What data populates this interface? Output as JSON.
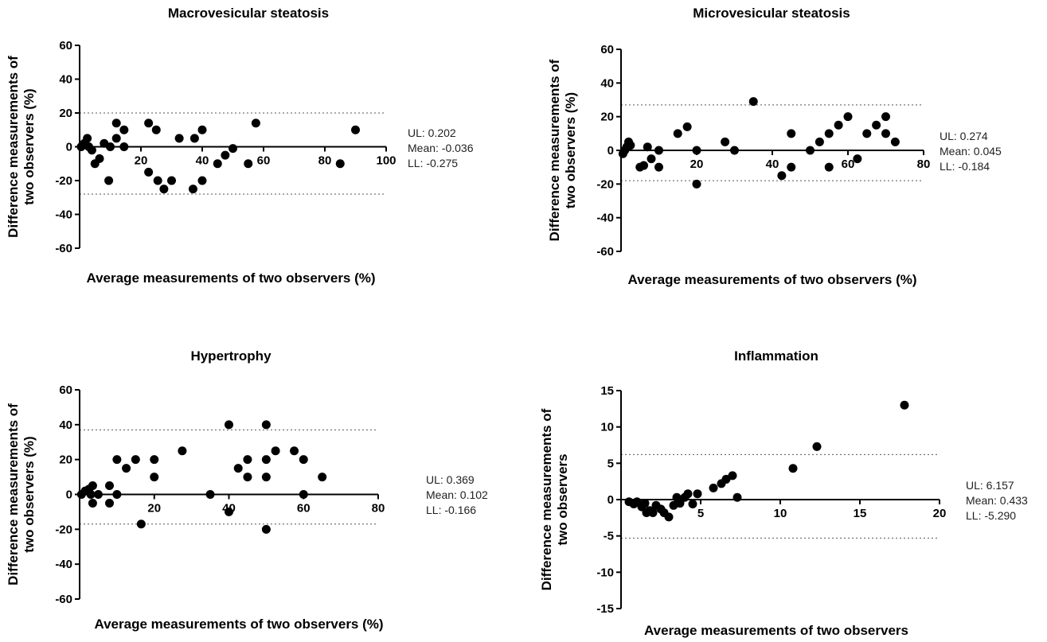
{
  "chart_data": [
    {
      "type": "scatter",
      "title": "Macrovesicular steatosis",
      "xlabel": "Average measurements of two observers (%)",
      "ylabel_lines": [
        "Difference measurements of",
        "two observers (%)"
      ],
      "xlim": [
        0,
        100
      ],
      "ylim": [
        -60,
        60
      ],
      "xticks": [
        20,
        40,
        60,
        80,
        100
      ],
      "yticks": [
        60,
        40,
        20,
        0,
        -20,
        -40,
        -60
      ],
      "upper_limit_line": 20,
      "lower_limit_line": -28,
      "stats": [
        "UL: 0.202",
        "Mean: -0.036",
        "LL: -0.275"
      ],
      "points": [
        {
          "x": 0.5,
          "y": 0
        },
        {
          "x": 1.5,
          "y": 2
        },
        {
          "x": 2.5,
          "y": 5
        },
        {
          "x": 3,
          "y": 0
        },
        {
          "x": 4,
          "y": -2
        },
        {
          "x": 5,
          "y": -10
        },
        {
          "x": 6.5,
          "y": -7
        },
        {
          "x": 8,
          "y": 2
        },
        {
          "x": 9.5,
          "y": -20
        },
        {
          "x": 10,
          "y": 0
        },
        {
          "x": 12,
          "y": 14
        },
        {
          "x": 12,
          "y": 5
        },
        {
          "x": 14.5,
          "y": 10
        },
        {
          "x": 14.5,
          "y": 0
        },
        {
          "x": 22.5,
          "y": 14
        },
        {
          "x": 22.5,
          "y": -15
        },
        {
          "x": 25,
          "y": 10
        },
        {
          "x": 25.5,
          "y": -20
        },
        {
          "x": 27.5,
          "y": -25
        },
        {
          "x": 30,
          "y": -20
        },
        {
          "x": 32.5,
          "y": 5
        },
        {
          "x": 37,
          "y": -25
        },
        {
          "x": 37.5,
          "y": 5
        },
        {
          "x": 40,
          "y": 10
        },
        {
          "x": 40,
          "y": -20
        },
        {
          "x": 45,
          "y": -10
        },
        {
          "x": 47.5,
          "y": -5
        },
        {
          "x": 50,
          "y": -1
        },
        {
          "x": 55,
          "y": -10
        },
        {
          "x": 57.5,
          "y": 14
        },
        {
          "x": 85,
          "y": -10
        },
        {
          "x": 90,
          "y": 10
        }
      ]
    },
    {
      "type": "scatter",
      "title": "Microvesicular steatosis",
      "xlabel": "Average measurements of two observers (%)",
      "ylabel_lines": [
        "Difference measurements of",
        "two observers (%)"
      ],
      "xlim": [
        0,
        80
      ],
      "ylim": [
        -60,
        60
      ],
      "xticks": [
        20,
        40,
        60,
        80
      ],
      "yticks": [
        60,
        40,
        20,
        0,
        -20,
        -40,
        -60
      ],
      "upper_limit_line": 27,
      "lower_limit_line": -18,
      "stats": [
        "UL: 0.274",
        "Mean: 0.045",
        "LL: -0.184"
      ],
      "points": [
        {
          "x": 0.5,
          "y": -2
        },
        {
          "x": 1,
          "y": 0
        },
        {
          "x": 1.5,
          "y": 2
        },
        {
          "x": 2,
          "y": 5
        },
        {
          "x": 2.5,
          "y": 3
        },
        {
          "x": 5,
          "y": -10
        },
        {
          "x": 6,
          "y": -9
        },
        {
          "x": 7,
          "y": 2
        },
        {
          "x": 8,
          "y": -5
        },
        {
          "x": 10,
          "y": 0
        },
        {
          "x": 10,
          "y": -10
        },
        {
          "x": 15,
          "y": 10
        },
        {
          "x": 17.5,
          "y": 14
        },
        {
          "x": 20,
          "y": 0
        },
        {
          "x": 20,
          "y": -20
        },
        {
          "x": 27.5,
          "y": 5
        },
        {
          "x": 30,
          "y": 0
        },
        {
          "x": 35,
          "y": 29
        },
        {
          "x": 42.5,
          "y": -15
        },
        {
          "x": 45,
          "y": 10
        },
        {
          "x": 45,
          "y": -10
        },
        {
          "x": 50,
          "y": 0
        },
        {
          "x": 52.5,
          "y": 5
        },
        {
          "x": 55,
          "y": 10
        },
        {
          "x": 55,
          "y": -10
        },
        {
          "x": 57.5,
          "y": 15
        },
        {
          "x": 60,
          "y": 20
        },
        {
          "x": 62.5,
          "y": -5
        },
        {
          "x": 65,
          "y": 10
        },
        {
          "x": 67.5,
          "y": 15
        },
        {
          "x": 70,
          "y": 20
        },
        {
          "x": 70,
          "y": 10
        },
        {
          "x": 72.5,
          "y": 5
        }
      ]
    },
    {
      "type": "scatter",
      "title": "Hypertrophy",
      "xlabel": "Average measurements of two observers (%)",
      "ylabel_lines": [
        "Difference measurements of",
        "two observers (%)"
      ],
      "xlim": [
        0,
        80
      ],
      "ylim": [
        -60,
        60
      ],
      "xticks": [
        20,
        40,
        60,
        80
      ],
      "yticks": [
        60,
        40,
        20,
        0,
        -20,
        -40,
        -60
      ],
      "upper_limit_line": 37,
      "lower_limit_line": -17,
      "stats": [
        "UL: 0.369",
        "Mean: 0.102",
        "LL: -0.166"
      ],
      "points": [
        {
          "x": 0.5,
          "y": 0
        },
        {
          "x": 1.5,
          "y": 2
        },
        {
          "x": 2.5,
          "y": 3
        },
        {
          "x": 3,
          "y": 0
        },
        {
          "x": 3.5,
          "y": 5
        },
        {
          "x": 3.5,
          "y": -5
        },
        {
          "x": 5,
          "y": 0
        },
        {
          "x": 8,
          "y": 5
        },
        {
          "x": 8,
          "y": -5
        },
        {
          "x": 10,
          "y": 20
        },
        {
          "x": 10,
          "y": 0
        },
        {
          "x": 12.5,
          "y": 15
        },
        {
          "x": 15,
          "y": 20
        },
        {
          "x": 16.5,
          "y": -17
        },
        {
          "x": 20,
          "y": 20
        },
        {
          "x": 20,
          "y": 10
        },
        {
          "x": 27.5,
          "y": 25
        },
        {
          "x": 35,
          "y": 0
        },
        {
          "x": 40,
          "y": 40
        },
        {
          "x": 40,
          "y": -10
        },
        {
          "x": 42.5,
          "y": 15
        },
        {
          "x": 45,
          "y": 20
        },
        {
          "x": 45,
          "y": 10
        },
        {
          "x": 50,
          "y": 40
        },
        {
          "x": 50,
          "y": 20
        },
        {
          "x": 50,
          "y": 10
        },
        {
          "x": 50,
          "y": -20
        },
        {
          "x": 52.5,
          "y": 25
        },
        {
          "x": 57.5,
          "y": 25
        },
        {
          "x": 60,
          "y": 20
        },
        {
          "x": 60,
          "y": 0
        },
        {
          "x": 65,
          "y": 10
        }
      ]
    },
    {
      "type": "scatter",
      "title": "Inflammation",
      "xlabel": "Average measurements of two observers",
      "ylabel_lines": [
        "Difference measurements of",
        "two observers"
      ],
      "xlim": [
        0,
        20
      ],
      "ylim": [
        -15,
        15
      ],
      "xticks": [
        5,
        10,
        15,
        20
      ],
      "yticks": [
        15,
        10,
        5,
        0,
        -5,
        -10,
        -15
      ],
      "upper_limit_line": 6.2,
      "lower_limit_line": -5.3,
      "stats": [
        "UL: 6.157",
        "Mean: 0.433",
        "LL: -5.290"
      ],
      "points": [
        {
          "x": 0.5,
          "y": -0.3
        },
        {
          "x": 0.8,
          "y": -0.6
        },
        {
          "x": 1.0,
          "y": -0.3
        },
        {
          "x": 1.3,
          "y": -1.0
        },
        {
          "x": 1.5,
          "y": -0.5
        },
        {
          "x": 1.6,
          "y": -1.8
        },
        {
          "x": 1.8,
          "y": -1.5
        },
        {
          "x": 2.0,
          "y": -1.8
        },
        {
          "x": 2.2,
          "y": -0.8
        },
        {
          "x": 2.5,
          "y": -1.3
        },
        {
          "x": 2.7,
          "y": -1.8
        },
        {
          "x": 3.0,
          "y": -2.4
        },
        {
          "x": 3.3,
          "y": -0.8
        },
        {
          "x": 3.5,
          "y": 0.3
        },
        {
          "x": 3.7,
          "y": -0.5
        },
        {
          "x": 4.0,
          "y": 0.3
        },
        {
          "x": 4.2,
          "y": 0.8
        },
        {
          "x": 4.5,
          "y": -0.6
        },
        {
          "x": 4.8,
          "y": 0.8
        },
        {
          "x": 5.8,
          "y": 1.6
        },
        {
          "x": 6.3,
          "y": 2.2
        },
        {
          "x": 6.6,
          "y": 2.8
        },
        {
          "x": 7.0,
          "y": 3.3
        },
        {
          "x": 7.3,
          "y": 0.3
        },
        {
          "x": 10.8,
          "y": 4.3
        },
        {
          "x": 12.3,
          "y": 7.3
        },
        {
          "x": 17.8,
          "y": 13.0
        }
      ]
    }
  ]
}
